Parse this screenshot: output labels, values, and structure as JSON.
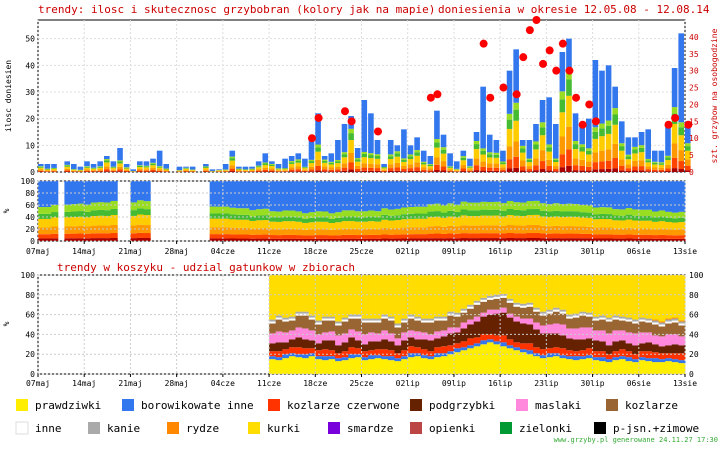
{
  "header": {
    "title": "trendy: ilosc i skutecznosc grzybobran (kolory jak na mapie)",
    "period": "doniesienia w okresie 12.05.08 - 12.08.14"
  },
  "chart_data": [
    {
      "type": "bar",
      "name": "reports",
      "ylabel": "ilosc doniesien",
      "y2label": "szt. grzybow na osobogodzine",
      "ylim": [
        0,
        57
      ],
      "yticks": [
        0,
        10,
        20,
        30,
        40,
        50
      ],
      "y2lim": [
        0,
        45
      ],
      "y2ticks": [
        0,
        5,
        10,
        15,
        20,
        25,
        30,
        35,
        40
      ],
      "x_ticks": [
        "07maj",
        "14maj",
        "21maj",
        "28maj",
        "04cze",
        "11cze",
        "18cze",
        "25cze",
        "02lip",
        "09lip",
        "16lip",
        "23lip",
        "30lip",
        "06sie",
        "13sie"
      ],
      "days": 98,
      "bar_colors": [
        "#3377ee",
        "#99dd22",
        "#44bb33",
        "#ffcc00",
        "#ff9900",
        "#ff4400",
        "#aa0000"
      ],
      "totals": [
        3,
        3,
        3,
        0,
        4,
        3,
        2,
        4,
        3,
        4,
        6,
        4,
        9,
        3,
        1,
        4,
        4,
        5,
        8,
        3,
        0,
        2,
        2,
        2,
        0,
        3,
        1,
        1,
        3,
        8,
        2,
        2,
        2,
        4,
        7,
        4,
        3,
        5,
        6,
        7,
        5,
        13,
        22,
        6,
        7,
        12,
        18,
        21,
        9,
        27,
        22,
        12,
        3,
        12,
        10,
        16,
        10,
        13,
        8,
        6,
        23,
        14,
        7,
        4,
        8,
        5,
        15,
        32,
        14,
        12,
        8,
        38,
        46,
        12,
        12,
        18,
        27,
        28,
        18,
        45,
        50,
        22,
        17,
        20,
        42,
        38,
        40,
        32,
        19,
        13,
        13,
        15,
        16,
        8,
        8,
        17,
        39,
        52,
        19
      ],
      "dots_x": [
        41,
        42,
        46,
        47,
        51,
        59,
        60,
        67,
        68,
        70,
        72,
        73,
        74,
        75,
        76,
        77,
        78,
        79,
        80,
        81,
        82,
        83,
        84,
        95,
        96,
        98
      ],
      "dots_y": [
        10,
        16,
        18,
        15,
        12,
        22,
        23,
        38,
        22,
        25,
        23,
        34,
        42,
        45,
        32,
        36,
        30,
        38,
        30,
        22,
        14,
        20,
        15,
        14,
        16,
        14
      ]
    },
    {
      "type": "area",
      "name": "effectiveness-share",
      "ylabel": "%",
      "ylim": [
        0,
        100
      ],
      "yticks": [
        0,
        20,
        40,
        60,
        80,
        100
      ],
      "gaps": [
        [
          12,
          13
        ],
        [
          17,
          25
        ]
      ],
      "colors_bottom_to_top": [
        "#aa0000",
        "#ff4400",
        "#ff9900",
        "#ffcc00",
        "#44bb33",
        "#99dd22",
        "#3377ee"
      ]
    },
    {
      "type": "area",
      "title": "trendy w koszyku - udzial gatunkow w zbiorach",
      "ylabel": "%",
      "ylim": [
        0,
        100
      ],
      "yticks": [
        0,
        20,
        40,
        60,
        80,
        100
      ],
      "x_ticks": [
        "07maj",
        "14maj",
        "21maj",
        "28maj",
        "04cze",
        "11cze",
        "18cze",
        "25cze",
        "02lip",
        "09lip",
        "16lip",
        "23lip",
        "30lip",
        "06sie",
        "13sie"
      ],
      "data_start_day": 35,
      "series": [
        {
          "name": "prawdziwki",
          "color": "#ffee00",
          "values": [
            15,
            14,
            16,
            18,
            17,
            16,
            18,
            15,
            14,
            15,
            13,
            14,
            16,
            17,
            14,
            15,
            16,
            15,
            14,
            13,
            15,
            17,
            18,
            16,
            15,
            17,
            18,
            20,
            22,
            24,
            26,
            28,
            30,
            32,
            30,
            28,
            26,
            24,
            22,
            20,
            18,
            16,
            17,
            18,
            16,
            15,
            14,
            15,
            16,
            14,
            13,
            12,
            14,
            15,
            13,
            12,
            14,
            13,
            12,
            12,
            13,
            12,
            11
          ]
        },
        {
          "name": "borowikowate inne",
          "color": "#3377ee",
          "values": [
            3,
            3,
            4,
            3,
            3,
            4,
            3,
            3,
            4,
            3,
            3,
            3,
            4,
            3,
            3,
            4,
            3,
            3,
            4,
            3,
            3,
            4,
            3,
            3,
            3,
            4,
            3,
            3,
            4,
            3,
            3,
            3,
            4,
            3,
            3,
            4,
            3,
            3,
            3,
            4,
            3,
            3,
            4,
            3,
            3,
            3,
            4,
            3,
            3,
            3,
            4,
            3,
            3,
            3,
            4,
            3,
            3,
            3,
            4,
            3,
            3,
            3,
            3
          ]
        },
        {
          "name": "kozlarze czerwone",
          "color": "#ff3300",
          "values": [
            5,
            6,
            5,
            6,
            7,
            6,
            5,
            6,
            7,
            6,
            5,
            6,
            7,
            6,
            6,
            5,
            6,
            7,
            6,
            5,
            6,
            7,
            6,
            6,
            5,
            6,
            7,
            6,
            5,
            6,
            7,
            6,
            6,
            5,
            6,
            7,
            6,
            5,
            6,
            7,
            6,
            6,
            5,
            6,
            7,
            6,
            5,
            6,
            7,
            6,
            6,
            5,
            6,
            7,
            6,
            5,
            6,
            7,
            6,
            6,
            5,
            6,
            7
          ]
        },
        {
          "name": "podgrzybki",
          "color": "#662200",
          "values": [
            8,
            9,
            7,
            8,
            10,
            9,
            8,
            7,
            9,
            10,
            8,
            9,
            10,
            8,
            7,
            9,
            8,
            10,
            9,
            8,
            10,
            9,
            8,
            10,
            11,
            9,
            10,
            12,
            11,
            13,
            14,
            16,
            18,
            20,
            22,
            23,
            22,
            21,
            20,
            19,
            18,
            16,
            15,
            14,
            13,
            12,
            12,
            11,
            10,
            11,
            10,
            9,
            10,
            9,
            8,
            9,
            8,
            9,
            8,
            7,
            8,
            9,
            8
          ]
        },
        {
          "name": "maslaki",
          "color": "#ff88dd",
          "values": [
            10,
            11,
            10,
            9,
            10,
            11,
            10,
            9,
            8,
            9,
            10,
            9,
            8,
            9,
            10,
            9,
            8,
            9,
            8,
            7,
            8,
            7,
            8,
            7,
            6,
            7,
            6,
            6,
            5,
            6,
            5,
            5,
            4,
            5,
            4,
            5,
            4,
            5,
            5,
            6,
            7,
            8,
            9,
            10,
            11,
            10,
            11,
            12,
            11,
            10,
            11,
            12,
            11,
            10,
            11,
            12,
            11,
            10,
            9,
            10,
            11,
            10,
            9
          ]
        },
        {
          "name": "kozlarze",
          "color": "#996633",
          "values": [
            10,
            12,
            11,
            10,
            12,
            13,
            11,
            10,
            12,
            11,
            10,
            12,
            11,
            13,
            12,
            10,
            11,
            12,
            13,
            11,
            10,
            12,
            11,
            10,
            12,
            11,
            10,
            12,
            11,
            10,
            11,
            12,
            11,
            10,
            11,
            10,
            11,
            10,
            11,
            12,
            11,
            10,
            11,
            12,
            11,
            10,
            11,
            12,
            11,
            10,
            11,
            12,
            11,
            10,
            11,
            10,
            11,
            10,
            11,
            10,
            11,
            12,
            11
          ]
        },
        {
          "name": "inne",
          "color": "#ffffff",
          "values": [
            2,
            2,
            2,
            2,
            2,
            2,
            2,
            2,
            2,
            2,
            2,
            2,
            2,
            2,
            2,
            2,
            2,
            2,
            2,
            2,
            2,
            2,
            2,
            2,
            2,
            2,
            2,
            2,
            2,
            2,
            2,
            2,
            2,
            2,
            2,
            2,
            2,
            2,
            2,
            2,
            2,
            2,
            2,
            2,
            2,
            2,
            2,
            2,
            2,
            2,
            2,
            2,
            2,
            2,
            2,
            2,
            2,
            2,
            2,
            2,
            2,
            2,
            2
          ]
        },
        {
          "name": "kanie",
          "color": "#aaaaaa",
          "values": [
            2,
            2,
            2,
            2,
            2,
            2,
            2,
            2,
            2,
            2,
            2,
            2,
            2,
            2,
            2,
            2,
            2,
            2,
            2,
            2,
            2,
            2,
            2,
            2,
            2,
            2,
            2,
            2,
            2,
            2,
            2,
            2,
            2,
            2,
            2,
            2,
            2,
            2,
            2,
            2,
            2,
            2,
            2,
            2,
            2,
            2,
            2,
            2,
            2,
            2,
            2,
            2,
            2,
            2,
            2,
            2,
            2,
            2,
            2,
            2,
            2,
            2,
            2
          ]
        },
        {
          "name": "rydze",
          "color": "#ff8800",
          "values": [
            0,
            0,
            0,
            0,
            0,
            0,
            0,
            0,
            0,
            0,
            0,
            0,
            0,
            0,
            0,
            0,
            0,
            0,
            0,
            0,
            0,
            0,
            0,
            0,
            0,
            0,
            0,
            0,
            0,
            0,
            0,
            0,
            0,
            0,
            0,
            0,
            0,
            0,
            0,
            0,
            0,
            0,
            0,
            0,
            0,
            0,
            0,
            0,
            0,
            0,
            0,
            0,
            0,
            0,
            0,
            0,
            0,
            0,
            1,
            1,
            1,
            1,
            1
          ]
        },
        {
          "name": "kurki",
          "color": "#ffdd00",
          "values": [
            45,
            41,
            43,
            42,
            37,
            37,
            41,
            46,
            42,
            42,
            47,
            43,
            40,
            40,
            44,
            45,
            44,
            40,
            40,
            48,
            44,
            40,
            42,
            44,
            44,
            42,
            42,
            37,
            36,
            34,
            30,
            26,
            21,
            21,
            20,
            19,
            24,
            28,
            29,
            26,
            29,
            33,
            37,
            37,
            38,
            40,
            41,
            41,
            42,
            45,
            45,
            45,
            46,
            48,
            47,
            48,
            47,
            47,
            47,
            48,
            46,
            46,
            49
          ]
        },
        {
          "name": "smardze",
          "color": "#7700dd",
          "values": []
        },
        {
          "name": "opienki",
          "color": "#bb4444",
          "values": []
        },
        {
          "name": "zielonki",
          "color": "#009933",
          "values": []
        },
        {
          "name": "p-jsn.+zimowe",
          "color": "#000000",
          "values": []
        }
      ]
    }
  ],
  "legend": [
    {
      "label": "prawdziwki",
      "color": "#ffee00"
    },
    {
      "label": "borowikowate inne",
      "color": "#3377ee"
    },
    {
      "label": "kozlarze czerwone",
      "color": "#ff3300"
    },
    {
      "label": "podgrzybki",
      "color": "#662200"
    },
    {
      "label": "maslaki",
      "color": "#ff88dd"
    },
    {
      "label": "kozlarze",
      "color": "#996633"
    },
    {
      "label": "inne",
      "color": "#ffffff"
    },
    {
      "label": "kanie",
      "color": "#aaaaaa"
    },
    {
      "label": "rydze",
      "color": "#ff8800"
    },
    {
      "label": "kurki",
      "color": "#ffdd00"
    },
    {
      "label": "smardze",
      "color": "#7700dd"
    },
    {
      "label": "opienki",
      "color": "#bb4444"
    },
    {
      "label": "zielonki",
      "color": "#009933"
    },
    {
      "label": "p-jsn.+zimowe",
      "color": "#000000"
    }
  ],
  "footer": "www.grzyby.pl generowane 24.11.27 17:30"
}
